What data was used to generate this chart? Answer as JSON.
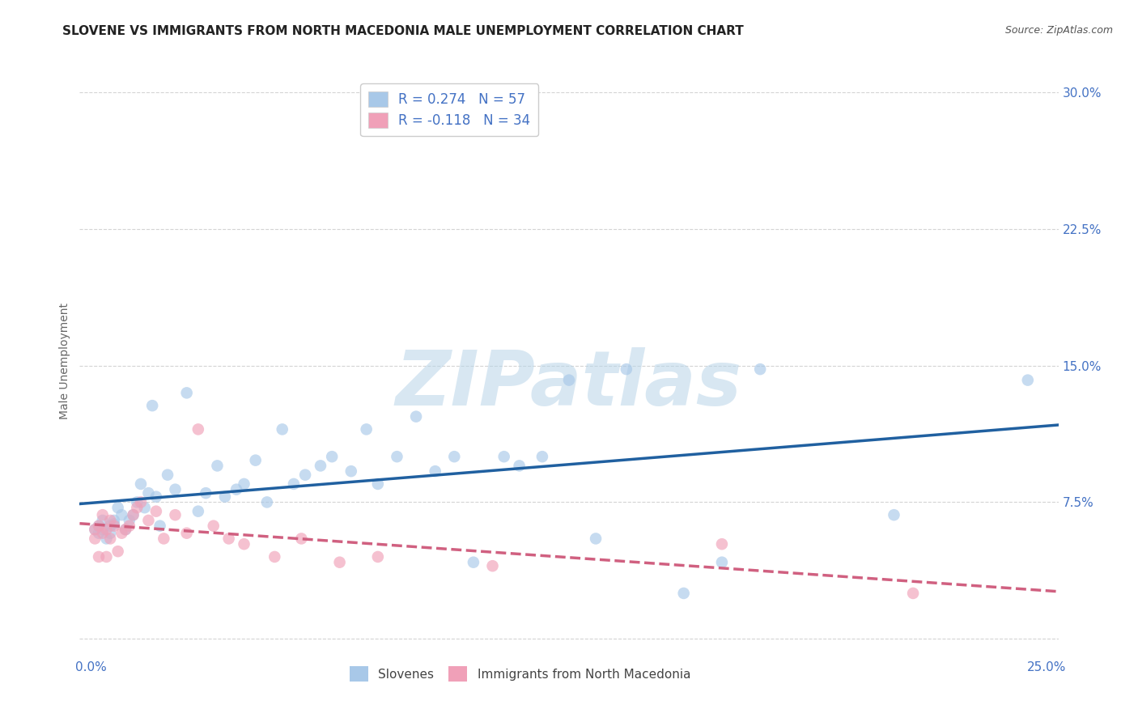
{
  "title": "SLOVENE VS IMMIGRANTS FROM NORTH MACEDONIA MALE UNEMPLOYMENT CORRELATION CHART",
  "source": "Source: ZipAtlas.com",
  "xlabel": "",
  "ylabel": "Male Unemployment",
  "xlim": [
    -0.003,
    0.253
  ],
  "ylim": [
    -0.01,
    0.315
  ],
  "yticks": [
    0.0,
    0.075,
    0.15,
    0.225,
    0.3
  ],
  "ytick_labels": [
    "",
    "7.5%",
    "15.0%",
    "22.5%",
    "30.0%"
  ],
  "xticks": [
    0.0,
    0.25
  ],
  "xtick_labels": [
    "0.0%",
    "25.0%"
  ],
  "grid_color": "#d0d0d0",
  "background_color": "#ffffff",
  "watermark_text": "ZIPatlas",
  "watermark_color": "#b8d4e8",
  "series": [
    {
      "name": "Slovenes",
      "R": 0.274,
      "N": 57,
      "color": "#a8c8e8",
      "line_color": "#2060a0",
      "line_style": "-",
      "x": [
        0.001,
        0.002,
        0.002,
        0.003,
        0.003,
        0.004,
        0.005,
        0.005,
        0.006,
        0.006,
        0.007,
        0.008,
        0.009,
        0.01,
        0.011,
        0.012,
        0.013,
        0.014,
        0.015,
        0.016,
        0.017,
        0.018,
        0.02,
        0.022,
        0.025,
        0.028,
        0.03,
        0.033,
        0.035,
        0.038,
        0.04,
        0.043,
        0.046,
        0.05,
        0.053,
        0.056,
        0.06,
        0.063,
        0.068,
        0.072,
        0.075,
        0.08,
        0.085,
        0.09,
        0.095,
        0.1,
        0.108,
        0.112,
        0.118,
        0.125,
        0.132,
        0.14,
        0.155,
        0.165,
        0.175,
        0.21,
        0.245
      ],
      "y": [
        0.06,
        0.058,
        0.062,
        0.06,
        0.065,
        0.055,
        0.062,
        0.058,
        0.063,
        0.065,
        0.072,
        0.068,
        0.06,
        0.065,
        0.068,
        0.075,
        0.085,
        0.072,
        0.08,
        0.128,
        0.078,
        0.062,
        0.09,
        0.082,
        0.135,
        0.07,
        0.08,
        0.095,
        0.078,
        0.082,
        0.085,
        0.098,
        0.075,
        0.115,
        0.085,
        0.09,
        0.095,
        0.1,
        0.092,
        0.115,
        0.085,
        0.1,
        0.122,
        0.092,
        0.1,
        0.042,
        0.1,
        0.095,
        0.1,
        0.142,
        0.055,
        0.148,
        0.025,
        0.042,
        0.148,
        0.068,
        0.142
      ]
    },
    {
      "name": "Immigrants from North Macedonia",
      "R": -0.118,
      "N": 34,
      "color": "#f0a0b8",
      "line_color": "#d06080",
      "line_style": "--",
      "x": [
        0.001,
        0.001,
        0.002,
        0.002,
        0.003,
        0.003,
        0.004,
        0.004,
        0.005,
        0.005,
        0.006,
        0.007,
        0.008,
        0.009,
        0.01,
        0.011,
        0.012,
        0.013,
        0.015,
        0.017,
        0.019,
        0.022,
        0.025,
        0.028,
        0.032,
        0.036,
        0.04,
        0.048,
        0.055,
        0.065,
        0.075,
        0.105,
        0.165,
        0.215
      ],
      "y": [
        0.06,
        0.055,
        0.062,
        0.045,
        0.058,
        0.068,
        0.06,
        0.045,
        0.055,
        0.065,
        0.062,
        0.048,
        0.058,
        0.06,
        0.062,
        0.068,
        0.072,
        0.075,
        0.065,
        0.07,
        0.055,
        0.068,
        0.058,
        0.115,
        0.062,
        0.055,
        0.052,
        0.045,
        0.055,
        0.042,
        0.045,
        0.04,
        0.052,
        0.025
      ]
    }
  ],
  "legend1_entries": [
    {
      "label_r": "R = 0.274",
      "label_n": "N = 57",
      "color": "#a8c8e8"
    },
    {
      "label_r": "R = -0.118",
      "label_n": "N = 34",
      "color": "#f0a0b8"
    }
  ],
  "legend2_entries": [
    {
      "label": "Slovenes",
      "color": "#a8c8e8"
    },
    {
      "label": "Immigrants from North Macedonia",
      "color": "#f0a0b8"
    }
  ],
  "title_fontsize": 11,
  "axis_label_fontsize": 10,
  "tick_fontsize": 11,
  "tick_color": "#4472c4",
  "ylabel_color": "#666666",
  "scatter_size": 110,
  "scatter_alpha": 0.65,
  "line_width": 2.5
}
